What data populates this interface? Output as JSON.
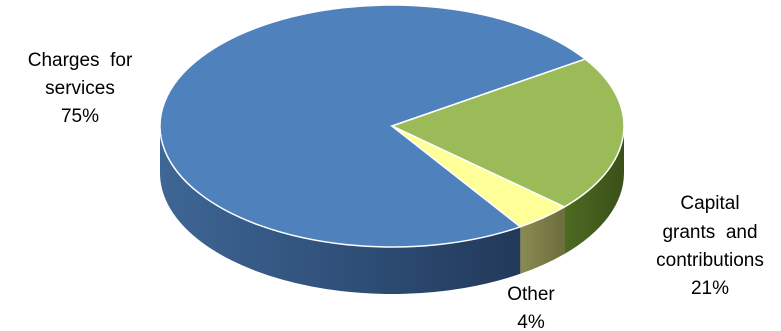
{
  "chart_data": {
    "type": "pie",
    "style": "3d",
    "slices": [
      {
        "name": "Charges for services",
        "value": 75,
        "color": "#4F81BD"
      },
      {
        "name": "Capital grants and contributions",
        "value": 21,
        "color": "#9BBB59"
      },
      {
        "name": "Other",
        "value": 4,
        "color": "#FFFF99"
      }
    ],
    "labels": {
      "charges": {
        "line1": "Charges  for",
        "line2": "services",
        "pct": "75%"
      },
      "capital": {
        "line1": "Capital",
        "line2": "grants  and",
        "line3": "contributions",
        "pct": "21%"
      },
      "other": {
        "line1": "Other",
        "pct": "4%"
      }
    }
  }
}
